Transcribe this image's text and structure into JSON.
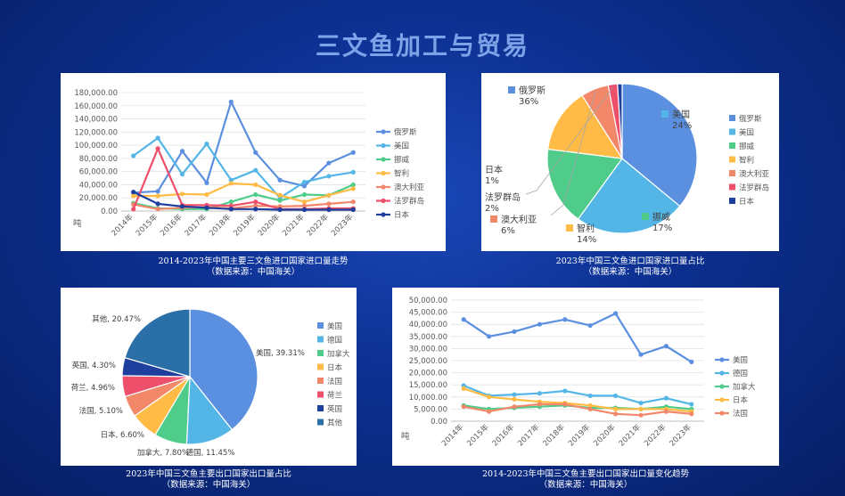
{
  "page_title": "三文鱼加工与贸易",
  "captions": {
    "c1_line1": "2014-2023年中国主要三文鱼进口国家进口量走势",
    "c1_line2": "（数据来源：中国海关）",
    "c2_line1": "2023年中国三文鱼进口国家进口量占比",
    "c2_line2": "（数据来源：中国海关）",
    "c3_line1": "2023年中国三文鱼主要出口国家出口量占比",
    "c3_line2": "（数据来源：中国海关）",
    "c4_line1": "2014-2023年中国三文鱼主要出口国家出口量变化趋势",
    "c4_line2": "（数据来源：中国海关）"
  },
  "chart_data": [
    {
      "type": "line",
      "title": "",
      "ylabel": "吨",
      "ylim": [
        0,
        180000
      ],
      "yticks": [
        "0.00",
        "20,000.00",
        "40,000.00",
        "60,000.00",
        "80,000.00",
        "100,000.00",
        "120,000.00",
        "140,000.00",
        "160,000.00",
        "180,000.00"
      ],
      "categories": [
        "2014年",
        "2015年",
        "2016年",
        "2017年",
        "2018年",
        "2019年",
        "2020年",
        "2021年",
        "2022年",
        "2023年"
      ],
      "legend": "right",
      "grid": true,
      "series": [
        {
          "name": "俄罗斯",
          "color": "#5b8fdf",
          "values": [
            28000,
            30000,
            91000,
            43000,
            166000,
            89000,
            47000,
            38000,
            73000,
            89000
          ]
        },
        {
          "name": "美国",
          "color": "#53b6e6",
          "values": [
            84000,
            111000,
            56000,
            102000,
            47000,
            62000,
            20000,
            44000,
            53000,
            59000
          ]
        },
        {
          "name": "挪威",
          "color": "#4fcb8a",
          "values": [
            12000,
            4000,
            3000,
            3000,
            14000,
            25000,
            16000,
            25000,
            24000,
            40000
          ]
        },
        {
          "name": "智利",
          "color": "#ffbb45",
          "values": [
            23000,
            23000,
            26000,
            25000,
            42000,
            40000,
            24000,
            14000,
            24000,
            34000
          ]
        },
        {
          "name": "澳大利亚",
          "color": "#f2876a",
          "values": [
            10000,
            3000,
            5000,
            6000,
            4000,
            8000,
            7000,
            8000,
            11000,
            14000
          ]
        },
        {
          "name": "法罗群岛",
          "color": "#ee4f6a",
          "values": [
            3000,
            95000,
            9000,
            9000,
            8000,
            14000,
            3000,
            3000,
            4000,
            4000
          ]
        },
        {
          "name": "日本",
          "color": "#1f3f9e",
          "values": [
            29000,
            11000,
            7000,
            5000,
            3000,
            3000,
            2000,
            2000,
            2000,
            2000
          ]
        }
      ]
    },
    {
      "type": "pie",
      "title": "",
      "legend": "right",
      "slices": [
        {
          "name": "俄罗斯",
          "value": 36,
          "label": "36%",
          "color": "#5b8fdf"
        },
        {
          "name": "美国",
          "value": 24,
          "label": "24%",
          "color": "#53b6e6"
        },
        {
          "name": "挪威",
          "value": 17,
          "label": "17%",
          "color": "#4fcb8a"
        },
        {
          "name": "智利",
          "value": 14,
          "label": "14%",
          "color": "#ffbb45"
        },
        {
          "name": "澳大利亚",
          "value": 6,
          "label": "6%",
          "color": "#f2876a"
        },
        {
          "name": "法罗群岛",
          "value": 2,
          "label": "2%",
          "color": "#ee4f6a"
        },
        {
          "name": "日本",
          "value": 1,
          "label": "1%",
          "color": "#1f3f9e"
        }
      ]
    },
    {
      "type": "pie",
      "title": "",
      "legend": "right",
      "slices": [
        {
          "name": "美国",
          "value": 39.31,
          "label": "美国, 39.31%",
          "color": "#5b8fdf"
        },
        {
          "name": "德国",
          "value": 11.45,
          "label": "德国, 11.45%",
          "color": "#53b6e6"
        },
        {
          "name": "加拿大",
          "value": 7.8,
          "label": "加拿大, 7.80%",
          "color": "#4fcb8a"
        },
        {
          "name": "日本",
          "value": 6.6,
          "label": "日本, 6.60%",
          "color": "#ffbb45"
        },
        {
          "name": "法国",
          "value": 5.1,
          "label": "法国, 5.10%",
          "color": "#f2876a"
        },
        {
          "name": "荷兰",
          "value": 4.96,
          "label": "荷兰, 4.96%",
          "color": "#ee4f6a"
        },
        {
          "name": "英国",
          "value": 4.3,
          "label": "英国, 4.30%",
          "color": "#1f3f9e"
        },
        {
          "name": "其他",
          "value": 20.47,
          "label": "其他, 20.47%",
          "color": "#2a6fa8"
        }
      ]
    },
    {
      "type": "line",
      "title": "",
      "ylabel": "吨",
      "ylim": [
        0,
        50000
      ],
      "yticks": [
        "0.00",
        "5,000.00",
        "10,000.00",
        "15,000.00",
        "20,000.00",
        "25,000.00",
        "30,000.00",
        "35,000.00",
        "40,000.00",
        "45,000.00",
        "50,000.00"
      ],
      "categories": [
        "2014年",
        "2015年",
        "2016年",
        "2017年",
        "2018年",
        "2019年",
        "2020年",
        "2021年",
        "2022年",
        "2023年"
      ],
      "legend": "right",
      "grid": true,
      "series": [
        {
          "name": "美国",
          "color": "#5b8fdf",
          "values": [
            42000,
            35000,
            37000,
            40000,
            42000,
            39500,
            44500,
            27500,
            31000,
            24500
          ]
        },
        {
          "name": "德国",
          "color": "#53b6e6",
          "values": [
            14700,
            10500,
            11000,
            11500,
            12500,
            10500,
            10500,
            7500,
            9500,
            7000
          ]
        },
        {
          "name": "加拿大",
          "color": "#4fcb8a",
          "values": [
            6500,
            5000,
            5500,
            6000,
            6500,
            5500,
            5500,
            5000,
            6000,
            5000
          ]
        },
        {
          "name": "日本",
          "color": "#ffbb45",
          "values": [
            13500,
            10000,
            9000,
            8000,
            7500,
            6500,
            5000,
            5000,
            5000,
            4000
          ]
        },
        {
          "name": "法国",
          "color": "#f2876a",
          "values": [
            6000,
            4000,
            6000,
            7000,
            7000,
            5000,
            3000,
            2500,
            4000,
            3000
          ]
        }
      ]
    }
  ]
}
